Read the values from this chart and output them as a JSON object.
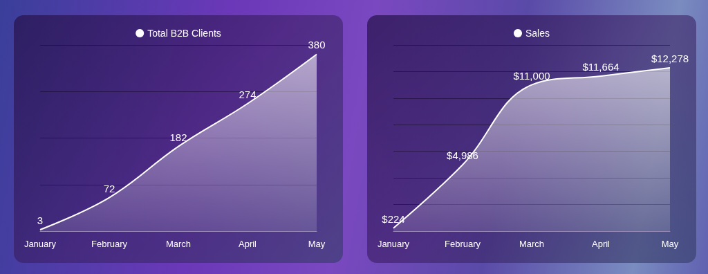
{
  "chart_data": [
    {
      "type": "area",
      "categories": [
        "January",
        "February",
        "March",
        "April",
        "May"
      ],
      "series": [
        {
          "name": "Total B2B Clients",
          "color": "#ffffff",
          "values": [
            3,
            72,
            182,
            274,
            380
          ]
        }
      ],
      "tick_labels": "x",
      "grid": "y",
      "legend": "top",
      "data_labels": true
    },
    {
      "type": "area",
      "categories": [
        "January",
        "February",
        "March",
        "April",
        "May"
      ],
      "series": [
        {
          "name": "Sales",
          "color": "#ffffff",
          "values": [
            224,
            4986,
            11000,
            11664,
            12278
          ],
          "value_labels": [
            "$224",
            "$4,986",
            "$11,000",
            "$11,664",
            "$12,278"
          ]
        }
      ],
      "tick_labels": "x",
      "grid": "y",
      "legend": "top"
    }
  ]
}
